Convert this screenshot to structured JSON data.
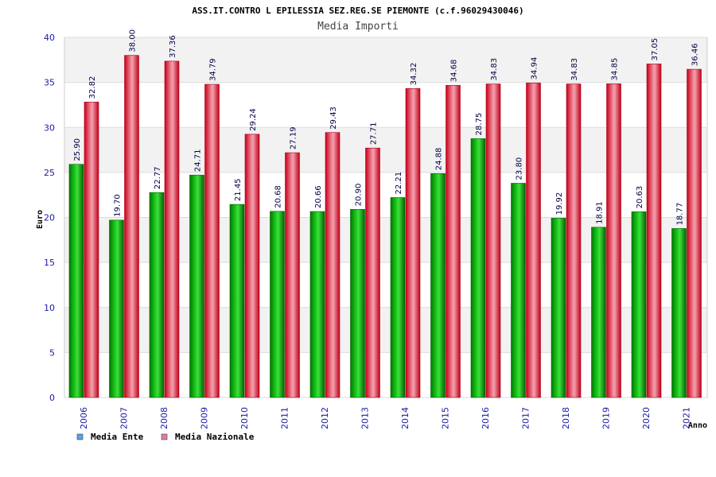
{
  "chart_data": {
    "type": "bar",
    "title": "ASS.IT.CONTRO L EPILESSIA SEZ.REG.SE PIEMONTE (c.f.96029430046)",
    "subtitle": "Media Importi",
    "xlabel": "Anno",
    "ylabel": "Euro",
    "ylim": [
      0,
      40
    ],
    "yticks": [
      "0",
      "5",
      "10",
      "15",
      "20",
      "25",
      "30",
      "35",
      "40"
    ],
    "grid": true,
    "legend_position": "bottom-left",
    "categories": [
      "2006",
      "2007",
      "2008",
      "2009",
      "2010",
      "2011",
      "2012",
      "2013",
      "2014",
      "2015",
      "2016",
      "2017",
      "2018",
      "2019",
      "2020",
      "2021"
    ],
    "series": [
      {
        "name": "Media Ente",
        "color": "#00b000",
        "legend_color": "#5aa0e6",
        "values": [
          25.9,
          19.7,
          22.77,
          24.71,
          21.45,
          20.68,
          20.66,
          20.9,
          22.21,
          24.88,
          28.75,
          23.8,
          19.92,
          18.91,
          20.63,
          18.77
        ],
        "labels": [
          "25.90",
          "19.70",
          "22.77",
          "24.71",
          "21.45",
          "20.68",
          "20.66",
          "20.90",
          "22.21",
          "24.88",
          "28.75",
          "23.80",
          "19.92",
          "18.91",
          "20.63",
          "18.77"
        ]
      },
      {
        "name": "Media Nazionale",
        "color": "#e01020",
        "legend_color": "#e07aa8",
        "values": [
          32.82,
          38.0,
          37.36,
          34.79,
          29.24,
          27.19,
          29.43,
          27.71,
          34.32,
          34.68,
          34.83,
          34.94,
          34.83,
          34.85,
          37.05,
          36.46
        ],
        "labels": [
          "32.82",
          "38.00",
          "37.36",
          "34.79",
          "29.24",
          "27.19",
          "29.43",
          "27.71",
          "34.32",
          "34.68",
          "34.83",
          "34.94",
          "34.83",
          "34.85",
          "37.05",
          "36.46"
        ]
      }
    ]
  }
}
